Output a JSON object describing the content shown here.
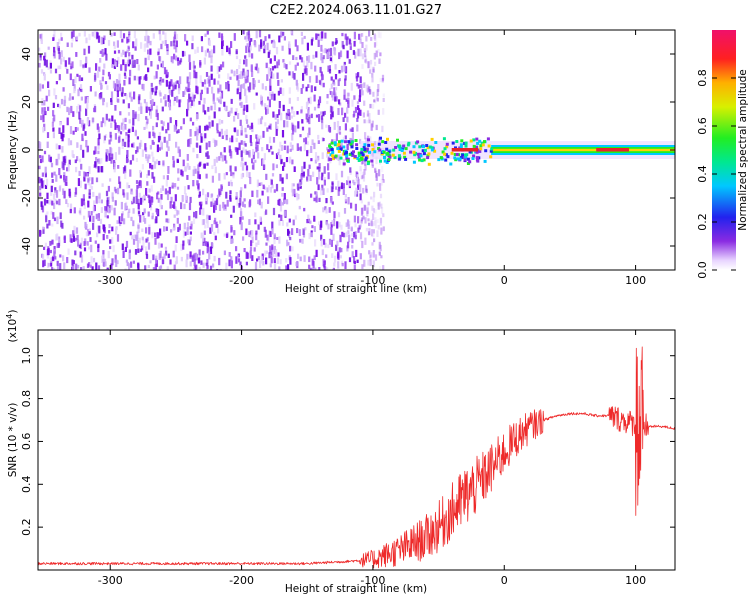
{
  "title": "C2E2.2024.063.11.01.G27",
  "colors": {
    "snr_line": "#ee2a2a",
    "speckle": "#7a10e8",
    "band_core": "#e8222a"
  },
  "chart_data": [
    {
      "type": "heatmap",
      "xlabel": "Height of straight line (km)",
      "ylabel": "Frequency (Hz)",
      "xlim": [
        -355,
        130
      ],
      "ylim": [
        -50,
        50
      ],
      "x_ticks": [
        -300,
        -200,
        -100,
        0,
        100
      ],
      "y_ticks": [
        -40,
        -20,
        0,
        20,
        40
      ],
      "colorbar": {
        "label": "Normalized spectral amplitude",
        "range": [
          0,
          1
        ],
        "ticks": [
          "0.0",
          "0.2",
          "0.4",
          "0.6",
          "0.8"
        ],
        "colormap": "rainbow"
      },
      "features": {
        "noise_region_x": [
          -355,
          -100
        ],
        "signal_band_center_hz": 0,
        "signal_band_x": [
          -135,
          130
        ]
      }
    },
    {
      "type": "line",
      "xlabel": "Height of straight line (km)",
      "ylabel": "SNR (10 * v/v)",
      "ylabel_multiplier": "(x10",
      "ylabel_multiplier_exp": "4",
      "ylabel_multiplier_close": ")",
      "xlim": [
        -355,
        130
      ],
      "ylim": [
        0,
        1.12
      ],
      "x_ticks": [
        -300,
        -200,
        -100,
        0,
        100
      ],
      "y_ticks": [
        "0.2",
        "0.4",
        "0.6",
        "0.8",
        "1.0"
      ],
      "series": [
        {
          "x": [
            -355,
            -300,
            -250,
            -200,
            -150,
            -120,
            -100,
            -90,
            -80,
            -70,
            -60,
            -50,
            -40,
            -30,
            -20,
            -10,
            0,
            10,
            20,
            30,
            40,
            50,
            60,
            70,
            80,
            90,
            100,
            110,
            120,
            130
          ],
          "y": [
            0.03,
            0.03,
            0.03,
            0.03,
            0.03,
            0.04,
            0.05,
            0.07,
            0.09,
            0.12,
            0.15,
            0.2,
            0.27,
            0.34,
            0.4,
            0.47,
            0.55,
            0.62,
            0.67,
            0.7,
            0.72,
            0.73,
            0.73,
            0.72,
            0.72,
            0.7,
            0.68,
            0.67,
            0.67,
            0.66
          ]
        }
      ]
    }
  ]
}
